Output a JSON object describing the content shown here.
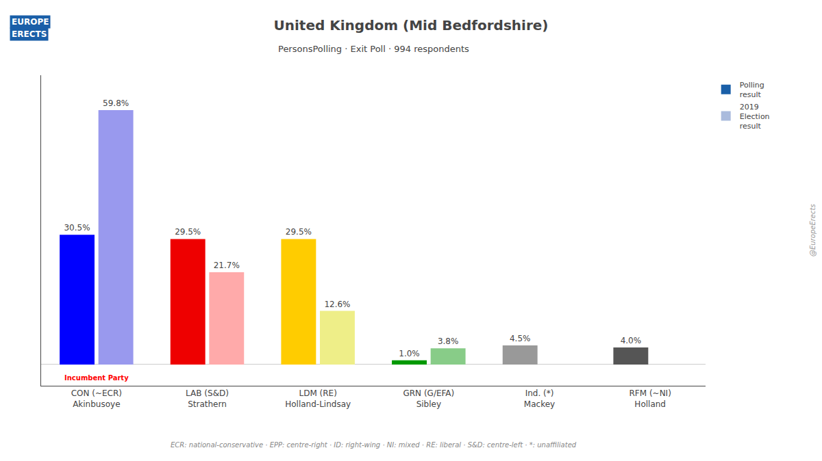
{
  "chart_data": {
    "type": "bar",
    "title": "United Kingdom (Mid Bedfordshire)",
    "subtitle": "PersonsPolling · Exit Poll · 994 respondents",
    "categories": [
      "CON (~ECR)\nAkinbusoye",
      "LAB (S&D)\nStrathern",
      "LDM (RE)\nHolland-Lindsay",
      "GRN (G/EFA)\nSibley",
      "Ind. (*)\nMackey",
      "RFM (~NI)\nHolland"
    ],
    "series": [
      {
        "name": "Polling\nresult",
        "color": "#1a5fa8",
        "colors": [
          "#0000ff",
          "#ee0000",
          "#ffcc00",
          "#009900",
          "#999999",
          "#555555"
        ],
        "values": [
          30.5,
          29.5,
          29.5,
          1.0,
          4.5,
          4.0
        ],
        "value_labels": [
          "30.5%",
          "29.5%",
          "29.5%",
          "1.0%",
          "4.5%",
          "4.0%"
        ]
      },
      {
        "name": "2019\nElection\nresult",
        "color": "#aabbdd",
        "colors": [
          "#9999ee",
          "#ffaaaa",
          "#eeee88",
          "#88cc88",
          null,
          null
        ],
        "values": [
          59.8,
          21.7,
          12.6,
          3.8,
          null,
          null
        ],
        "value_labels": [
          "59.8%",
          "21.7%",
          "12.6%",
          "3.8%",
          null,
          null
        ]
      }
    ],
    "ylim": [
      -5,
      68
    ],
    "grid": false,
    "legend": "upper right",
    "data_labels": true,
    "tick_labels": "x",
    "annotations": [
      {
        "text": "Incumbent Party",
        "category": "CON (~ECR)\nAkinbusoye",
        "color": "#ff0000"
      }
    ],
    "footnote": "ECR: national-conservative · EPP: centre-right · ID: right-wing · NI: mixed · RE: liberal · S&D: centre-left · *: unaffiliated",
    "watermark": "@EuropeErects",
    "logo_text": [
      "EUROPE",
      "ERECTS"
    ]
  }
}
